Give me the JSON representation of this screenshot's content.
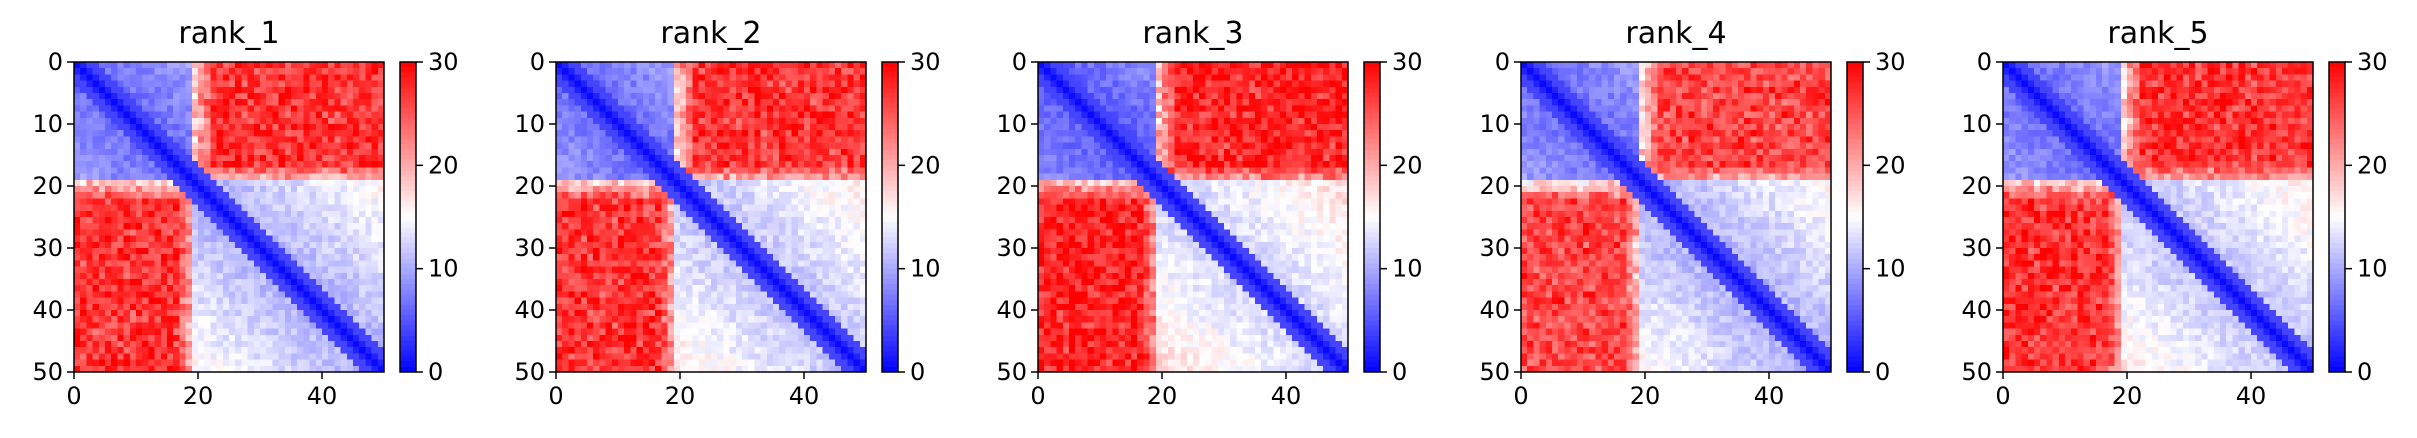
{
  "figure": {
    "domain": "Chart",
    "description": "Five predicted aligned error (PAE) heatmaps for ranked models"
  },
  "chart_data": [
    {
      "type": "heatmap",
      "title": "rank_1",
      "xlim": [
        0,
        50
      ],
      "ylim": [
        50,
        0
      ],
      "xticks": [
        0,
        20,
        40
      ],
      "yticks": [
        0,
        10,
        20,
        30,
        40,
        50
      ],
      "n": 50,
      "colormap": "bwr",
      "vmin": 0,
      "vmax": 30,
      "colorbar_ticks": [
        0,
        10,
        20,
        30
      ],
      "domains": [
        [
          0,
          19
        ],
        [
          19,
          50
        ]
      ],
      "intra_levels": [
        6,
        10
      ],
      "inter_level": 27
    },
    {
      "type": "heatmap",
      "title": "rank_2",
      "xlim": [
        0,
        50
      ],
      "ylim": [
        50,
        0
      ],
      "xticks": [
        0,
        20,
        40
      ],
      "yticks": [
        0,
        10,
        20,
        30,
        40,
        50
      ],
      "n": 50,
      "colormap": "bwr",
      "vmin": 0,
      "vmax": 30,
      "colorbar_ticks": [
        0,
        10,
        20,
        30
      ],
      "domains": [
        [
          0,
          19
        ],
        [
          19,
          50
        ]
      ],
      "intra_levels": [
        6,
        11
      ],
      "inter_level": 27
    },
    {
      "type": "heatmap",
      "title": "rank_3",
      "xlim": [
        0,
        50
      ],
      "ylim": [
        50,
        0
      ],
      "xticks": [
        0,
        20,
        40
      ],
      "yticks": [
        0,
        10,
        20,
        30,
        40,
        50
      ],
      "n": 50,
      "colormap": "bwr",
      "vmin": 0,
      "vmax": 30,
      "colorbar_ticks": [
        0,
        10,
        20,
        30
      ],
      "domains": [
        [
          0,
          19
        ],
        [
          19,
          50
        ]
      ],
      "intra_levels": [
        5,
        12
      ],
      "inter_level": 28
    },
    {
      "type": "heatmap",
      "title": "rank_4",
      "xlim": [
        0,
        50
      ],
      "ylim": [
        50,
        0
      ],
      "xticks": [
        0,
        20,
        40
      ],
      "yticks": [
        0,
        10,
        20,
        30,
        40,
        50
      ],
      "n": 50,
      "colormap": "bwr",
      "vmin": 0,
      "vmax": 30,
      "colorbar_ticks": [
        0,
        10,
        20,
        30
      ],
      "domains": [
        [
          0,
          19
        ],
        [
          19,
          50
        ]
      ],
      "intra_levels": [
        6,
        10
      ],
      "inter_level": 26
    },
    {
      "type": "heatmap",
      "title": "rank_5",
      "xlim": [
        0,
        50
      ],
      "ylim": [
        50,
        0
      ],
      "xticks": [
        0,
        20,
        40
      ],
      "yticks": [
        0,
        10,
        20,
        30,
        40,
        50
      ],
      "n": 50,
      "colormap": "bwr",
      "vmin": 0,
      "vmax": 30,
      "colorbar_ticks": [
        0,
        10,
        20,
        30
      ],
      "domains": [
        [
          0,
          19
        ],
        [
          19,
          50
        ]
      ],
      "intra_levels": [
        6,
        11
      ],
      "inter_level": 27
    }
  ]
}
